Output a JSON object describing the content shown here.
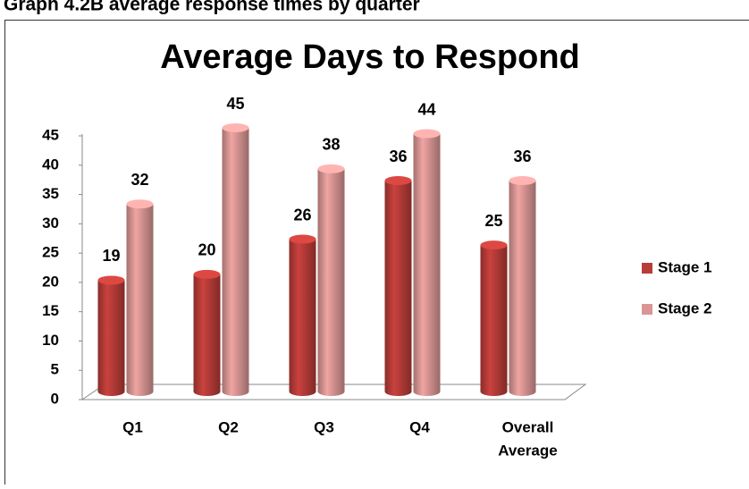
{
  "header": {
    "title": "Graph 4.2B average response times by quarter"
  },
  "chart_data": {
    "type": "bar",
    "title": "Average Days to Respond",
    "categories": [
      "Q1",
      "Q2",
      "Q3",
      "Q4",
      [
        "Overall",
        "Average"
      ]
    ],
    "series": [
      {
        "name": "Stage 1",
        "color": "#b83c38",
        "values": [
          19,
          20,
          26,
          36,
          25
        ]
      },
      {
        "name": "Stage 2",
        "color": "#d99694",
        "values": [
          32,
          45,
          38,
          44,
          36
        ]
      }
    ],
    "ylim": [
      0,
      45
    ],
    "yticks": [
      0,
      5,
      10,
      15,
      20,
      25,
      30,
      35,
      40,
      45
    ],
    "legend": "right"
  }
}
